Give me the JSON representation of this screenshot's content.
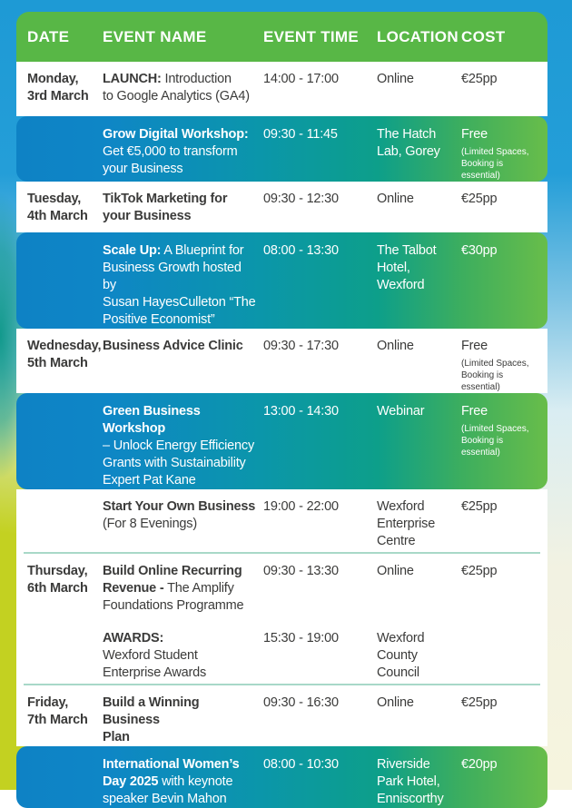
{
  "colors": {
    "page_blue": "#1E9AD5",
    "page_yellow_green": "#C3D121",
    "page_cream": "#F6F4DE",
    "header_green": "#58B746",
    "row_gradient_blue": "#0E82C5",
    "row_gradient_teal": "#0D9F8A",
    "row_gradient_green": "#68BD4A",
    "divider_teal": "#A8D8C8",
    "body_text": "#3B3B3A",
    "white_text": "#FFFFFF"
  },
  "table": {
    "header": {
      "date": "DATE",
      "event_name": "EVENT NAME",
      "event_time": "EVENT TIME",
      "location": "LOCATION",
      "cost": "COST"
    },
    "rows": [
      {
        "date": "Monday,\n3rd March",
        "name_bold": "LAUNCH:",
        "name_rest": " Introduction\nto Google Analytics (GA4)",
        "time": "14:00 - 17:00",
        "location": "Online",
        "cost": "€25pp"
      },
      {
        "date": "",
        "name_bold": "Grow Digital Workshop:",
        "name_rest": "\nGet €5,000 to transform\nyour Business",
        "time": "09:30 - 11:45",
        "location": "The Hatch\nLab, Gorey",
        "cost": "Free",
        "cost_note": "(Limited Spaces,\nBooking is essential)"
      },
      {
        "date": "Tuesday,\n4th March",
        "name_bold": "TikTok Marketing for\nyour Business",
        "name_rest": "",
        "time": "09:30 - 12:30",
        "location": "Online",
        "cost": "€25pp"
      },
      {
        "date": "",
        "name_bold": "Scale Up:",
        "name_rest": " A Blueprint for\nBusiness Growth hosted by\nSusan HayesCulleton “The\nPositive Economist”",
        "time": "08:00 - 13:30",
        "location": "The Talbot\nHotel,\nWexford",
        "cost": "€30pp"
      },
      {
        "date": "Wednesday,\n5th March",
        "name_bold": "Business Advice Clinic",
        "name_rest": "",
        "time": "09:30 - 17:30",
        "location": "Online",
        "cost": "Free",
        "cost_note": "(Limited Spaces,\nBooking is essential)"
      },
      {
        "date": "",
        "name_bold": "Green Business Workshop",
        "name_rest": "\n– Unlock Energy Efficiency\nGrants with Sustainability\nExpert Pat Kane",
        "time": "13:00 - 14:30",
        "location": "Webinar",
        "cost": "Free",
        "cost_note": "(Limited Spaces,\nBooking is essential)"
      },
      {
        "date": "",
        "name_bold": "Start Your Own Business",
        "name_rest": "\n(For 8 Evenings)",
        "time": "19:00 - 22:00",
        "location": "Wexford\nEnterprise\nCentre",
        "cost": "€25pp"
      },
      {
        "date": "Thursday,\n6th March",
        "name_bold": "Build Online Recurring\nRevenue -",
        "name_rest": " The Amplify\nFoundations Programme",
        "time": "09:30 - 13:30",
        "location": "Online",
        "cost": "€25pp"
      },
      {
        "date": "",
        "name_bold": "AWARDS:",
        "name_rest": "\nWexford Student\nEnterprise Awards",
        "time": "15:30 - 19:00",
        "location": "Wexford\nCounty\nCouncil",
        "cost": ""
      },
      {
        "date": "Friday,\n7th March",
        "name_bold": "Build a Winning Business\nPlan",
        "name_rest": "",
        "time": "09:30 - 16:30",
        "location": "Online",
        "cost": "€25pp"
      },
      {
        "date": "",
        "name_bold": "International Women’s\nDay 2025",
        "name_rest": " with keynote\nspeaker Bevin Mahon",
        "time": "08:00 - 10:30",
        "location": "Riverside\nPark Hotel,\nEnniscorthy",
        "cost": "€20pp"
      }
    ]
  }
}
